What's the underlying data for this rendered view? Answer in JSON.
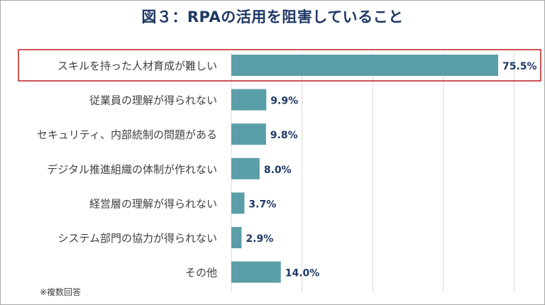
{
  "title": "図３：RPAの活用を阻害していること",
  "note": "※複数回答",
  "chart_data": {
    "type": "bar",
    "orientation": "horizontal",
    "categories": [
      "スキルを持った人材育成が難しい",
      "従業員の理解が得られない",
      "セキュリティ、内部統制の問題がある",
      "デジタル推進組織の体制が作れない",
      "経営層の理解が得られない",
      "システム部門の協力が得られない",
      "その他"
    ],
    "values": [
      75.5,
      9.9,
      9.8,
      8.0,
      3.7,
      2.9,
      14.0
    ],
    "value_labels": [
      "75.5%",
      "9.9%",
      "9.8%",
      "8.0%",
      "3.7%",
      "2.9%",
      "14.0%"
    ],
    "xlim": [
      0,
      80
    ],
    "grid": true,
    "highlighted_category": "スキルを持った人材育成が難しい",
    "bar_color": "#5a9ea8",
    "highlight_color": "#c0272d",
    "label_color": "#1f3864"
  }
}
